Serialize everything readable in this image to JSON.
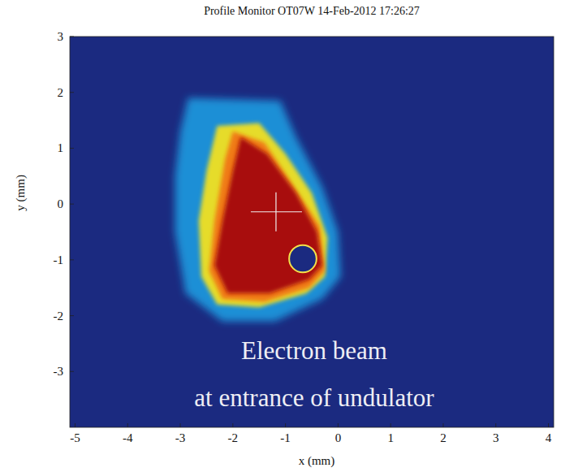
{
  "chart_data": {
    "type": "image",
    "title": "Profile Monitor OT07W 14-Feb-2012 17:26:27",
    "xlabel": "x (mm)",
    "ylabel": "y (mm)",
    "xlim": [
      -5.1,
      4.1
    ],
    "ylim": [
      -4,
      3
    ],
    "xticks": [
      -5,
      -4,
      -3,
      -2,
      -1,
      0,
      1,
      2,
      3,
      4
    ],
    "yticks": [
      -3,
      -2,
      -1,
      0,
      1,
      2,
      3
    ],
    "annotations": [
      "Electron beam",
      "at entrance of undulator"
    ],
    "regions": [
      {
        "color": "#1f8fd6",
        "x": [
          -2.85,
          -1.1,
          -0.8,
          -0.3,
          0.0,
          0.05,
          -0.3,
          -1.2,
          -2.2,
          -2.9,
          -3.1,
          -3.1,
          -3.0
        ],
        "y": [
          1.9,
          1.85,
          1.2,
          0.3,
          -0.5,
          -1.3,
          -1.7,
          -2.1,
          -2.1,
          -1.6,
          -0.5,
          0.5,
          1.3
        ]
      },
      {
        "color": "#e6dc2a",
        "x": [
          -2.3,
          -1.5,
          -1.0,
          -0.5,
          -0.2,
          -0.25,
          -0.6,
          -1.5,
          -2.3,
          -2.6,
          -2.65,
          -2.5
        ],
        "y": [
          1.4,
          1.45,
          0.9,
          0.2,
          -0.6,
          -1.3,
          -1.6,
          -1.85,
          -1.8,
          -1.3,
          -0.3,
          0.6
        ]
      },
      {
        "color": "#f07a12",
        "x": [
          -2.0,
          -1.4,
          -0.9,
          -0.35,
          -0.25,
          -0.55,
          -1.4,
          -2.2,
          -2.45,
          -2.35,
          -2.15
        ],
        "y": [
          1.3,
          1.1,
          0.4,
          -0.4,
          -1.2,
          -1.5,
          -1.75,
          -1.7,
          -1.2,
          -0.3,
          0.8
        ]
      },
      {
        "color": "#a80f0f",
        "x": [
          -1.85,
          -1.35,
          -0.8,
          -0.4,
          -0.3,
          -0.55,
          -1.3,
          -2.1,
          -2.35,
          -2.2,
          -2.0
        ],
        "y": [
          1.2,
          0.9,
          0.2,
          -0.5,
          -1.1,
          -1.35,
          -1.6,
          -1.6,
          -1.1,
          -0.3,
          0.6
        ]
      }
    ],
    "centroid": {
      "x": -1.18,
      "y": -0.14
    },
    "hole": {
      "x": -0.67,
      "y": -0.98,
      "r": 0.26
    }
  }
}
